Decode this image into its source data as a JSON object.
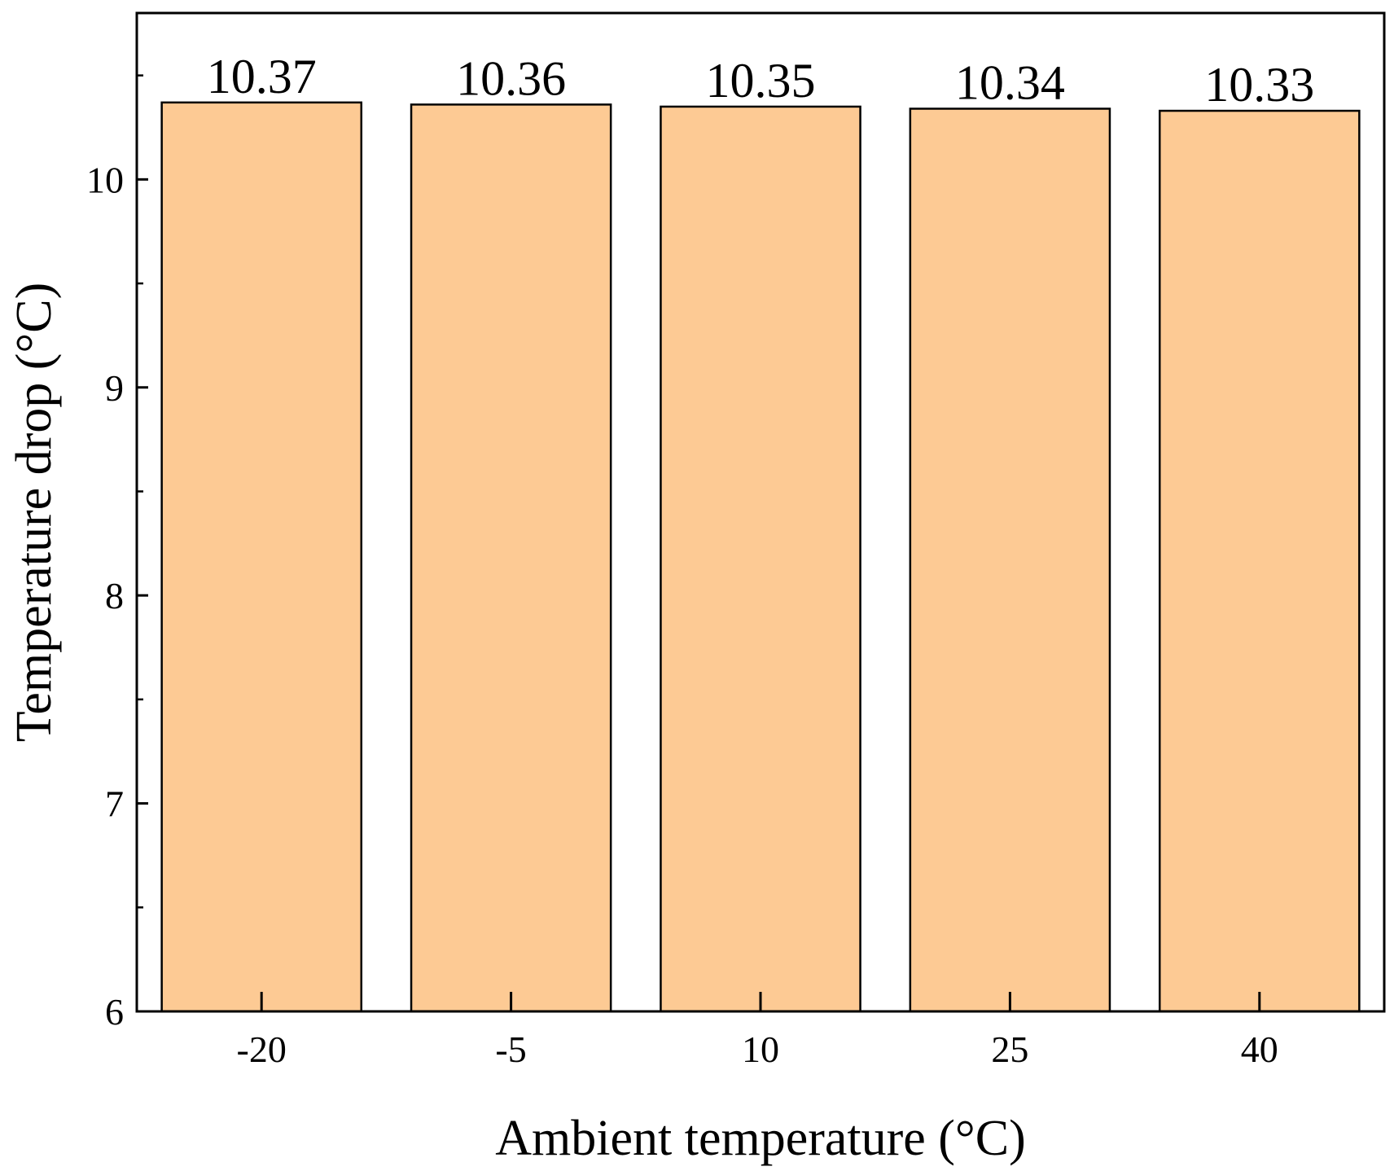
{
  "chart_data": {
    "type": "bar",
    "categories": [
      "-20",
      "-5",
      "10",
      "25",
      "40"
    ],
    "values": [
      10.37,
      10.36,
      10.35,
      10.34,
      10.33
    ],
    "data_labels": [
      "10.37",
      "10.36",
      "10.35",
      "10.34",
      "10.33"
    ],
    "xlabel": "Ambient temperature (°C)",
    "ylabel": "Temperature drop (°C)",
    "ylim": [
      6,
      10.8
    ],
    "yticks": [
      6,
      7,
      8,
      9,
      10
    ],
    "ytick_labels": [
      "6",
      "7",
      "8",
      "9",
      "10"
    ],
    "grid": false,
    "legend": "none",
    "bar_color": "#FDCA94",
    "edge_color": "#000000"
  }
}
